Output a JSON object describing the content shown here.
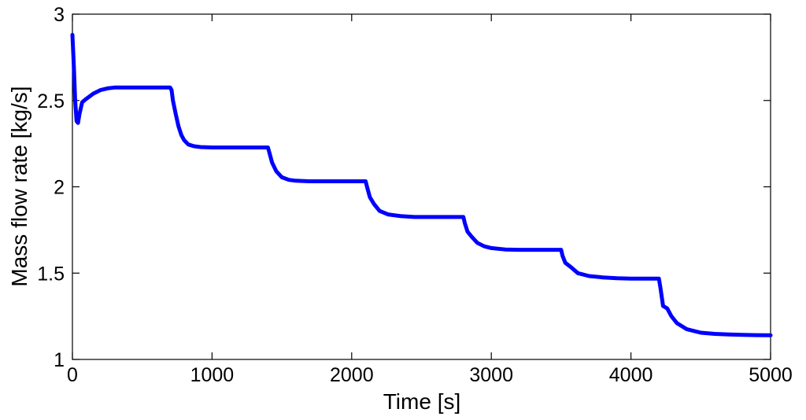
{
  "chart_data": {
    "type": "line",
    "title": "",
    "xlabel": "Time [s]",
    "ylabel": "Mass flow rate [kg/s]",
    "xlim": [
      0,
      5000
    ],
    "ylim": [
      1,
      3
    ],
    "xticks": [
      0,
      1000,
      2000,
      3000,
      4000,
      5000
    ],
    "yticks": [
      1,
      1.5,
      2,
      2.5,
      3
    ],
    "xtick_labels": [
      "0",
      "1000",
      "2000",
      "3000",
      "4000",
      "5000"
    ],
    "ytick_labels": [
      "1",
      "1.5",
      "2",
      "2.5",
      "3"
    ],
    "grid": false,
    "legend": "none",
    "series": [
      {
        "color": "#0000ff",
        "x": [
          0,
          10,
          20,
          30,
          40,
          50,
          70,
          100,
          150,
          200,
          250,
          300,
          400,
          500,
          600,
          700,
          710,
          720,
          740,
          760,
          780,
          800,
          830,
          870,
          920,
          1000,
          1100,
          1200,
          1300,
          1400,
          1410,
          1430,
          1460,
          1500,
          1550,
          1600,
          1700,
          1800,
          1900,
          2000,
          2100,
          2110,
          2130,
          2160,
          2200,
          2260,
          2350,
          2450,
          2600,
          2700,
          2800,
          2810,
          2830,
          2860,
          2900,
          2950,
          3000,
          3100,
          3200,
          3300,
          3400,
          3500,
          3510,
          3530,
          3570,
          3620,
          3700,
          3800,
          3900,
          4000,
          4100,
          4200,
          4210,
          4230,
          4260,
          4290,
          4330,
          4400,
          4500,
          4600,
          4700,
          4800,
          4900,
          5000
        ],
        "y": [
          2.88,
          2.7,
          2.5,
          2.38,
          2.37,
          2.42,
          2.49,
          2.51,
          2.54,
          2.56,
          2.57,
          2.575,
          2.575,
          2.575,
          2.575,
          2.575,
          2.56,
          2.5,
          2.42,
          2.35,
          2.3,
          2.27,
          2.245,
          2.235,
          2.23,
          2.228,
          2.228,
          2.228,
          2.228,
          2.228,
          2.2,
          2.14,
          2.09,
          2.055,
          2.04,
          2.035,
          2.032,
          2.032,
          2.032,
          2.032,
          2.032,
          2.0,
          1.94,
          1.9,
          1.86,
          1.84,
          1.83,
          1.825,
          1.825,
          1.825,
          1.825,
          1.79,
          1.74,
          1.71,
          1.675,
          1.655,
          1.645,
          1.637,
          1.635,
          1.635,
          1.635,
          1.635,
          1.6,
          1.56,
          1.535,
          1.5,
          1.483,
          1.475,
          1.47,
          1.468,
          1.468,
          1.468,
          1.42,
          1.31,
          1.295,
          1.25,
          1.21,
          1.175,
          1.155,
          1.148,
          1.145,
          1.142,
          1.141,
          1.14
        ]
      }
    ]
  }
}
